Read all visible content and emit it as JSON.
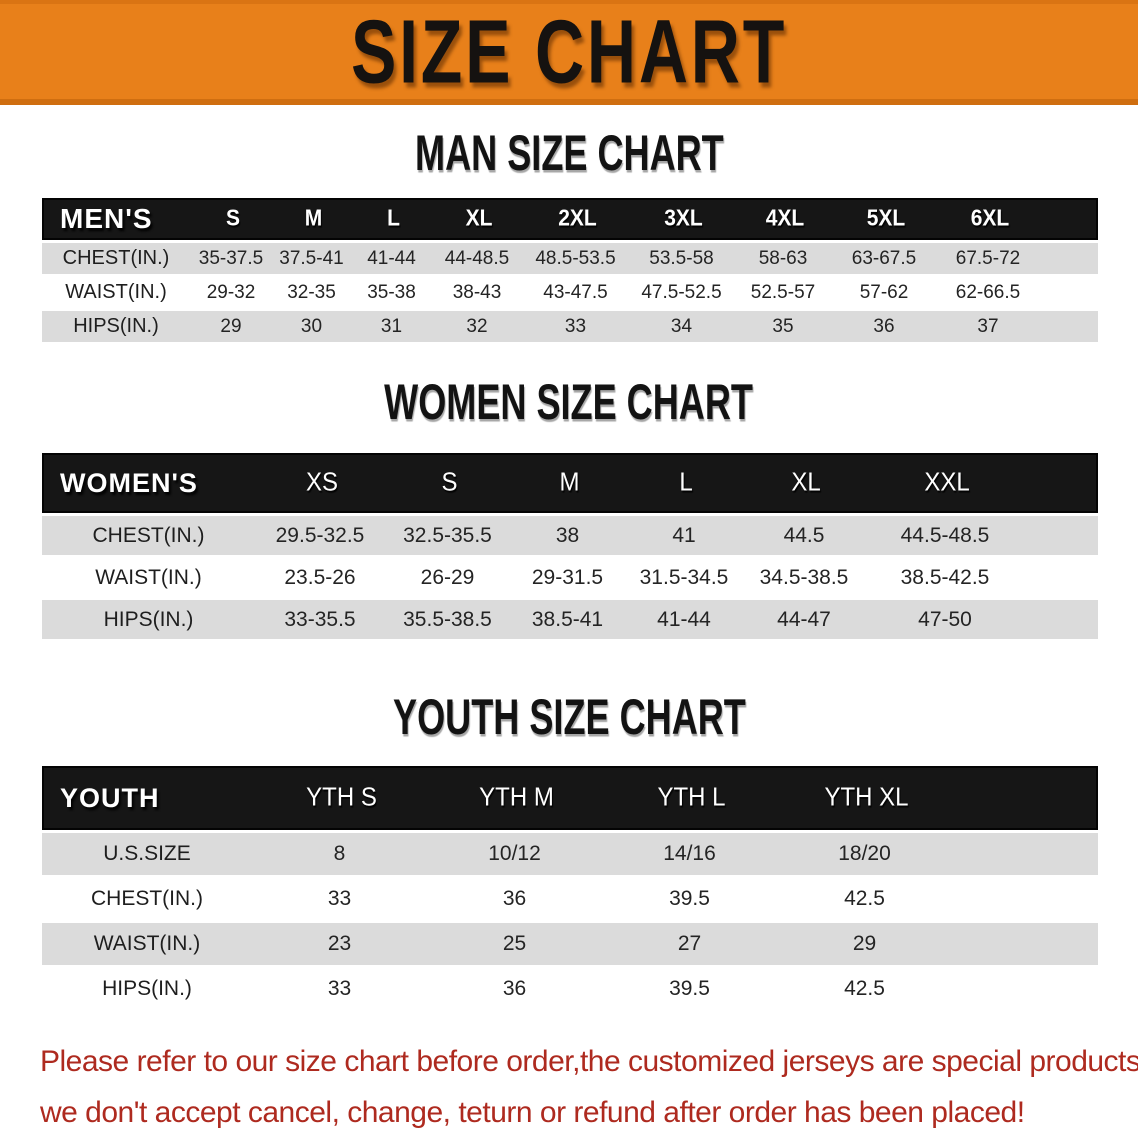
{
  "banner": {
    "title": "SIZE CHART",
    "background": "#E8801A"
  },
  "sections": {
    "man_heading": "MAN SIZE CHART",
    "women_heading": "WOMEN SIZE CHART",
    "youth_heading": "YOUTH SIZE CHART"
  },
  "tables": [
    {
      "id": "men",
      "label": "MEN'S",
      "sizes": [
        "S",
        "M",
        "L",
        "XL",
        "2XL",
        "3XL",
        "4XL",
        "5XL",
        "6XL"
      ],
      "rows": [
        {
          "label": "CHEST(IN.)",
          "values": [
            "35-37.5",
            "37.5-41",
            "41-44",
            "44-48.5",
            "48.5-53.5",
            "53.5-58",
            "58-63",
            "63-67.5",
            "67.5-72"
          ]
        },
        {
          "label": "WAIST(IN.)",
          "values": [
            "29-32",
            "32-35",
            "35-38",
            "38-43",
            "43-47.5",
            "47.5-52.5",
            "52.5-57",
            "57-62",
            "62-66.5"
          ]
        },
        {
          "label": "HIPS(IN.)",
          "values": [
            "29",
            "30",
            "31",
            "32",
            "33",
            "34",
            "35",
            "36",
            "37"
          ]
        }
      ]
    },
    {
      "id": "women",
      "label": "WOMEN'S",
      "sizes": [
        "XS",
        "S",
        "M",
        "L",
        "XL",
        "XXL"
      ],
      "rows": [
        {
          "label": "CHEST(IN.)",
          "values": [
            "29.5-32.5",
            "32.5-35.5",
            "38",
            "41",
            "44.5",
            "44.5-48.5"
          ]
        },
        {
          "label": "WAIST(IN.)",
          "values": [
            "23.5-26",
            "26-29",
            "29-31.5",
            "31.5-34.5",
            "34.5-38.5",
            "38.5-42.5"
          ]
        },
        {
          "label": "HIPS(IN.)",
          "values": [
            "33-35.5",
            "35.5-38.5",
            "38.5-41",
            "41-44",
            "44-47",
            "47-50"
          ]
        }
      ]
    },
    {
      "id": "youth",
      "label": "YOUTH",
      "sizes": [
        "YTH S",
        "YTH M",
        "YTH L",
        "YTH XL"
      ],
      "rows": [
        {
          "label": "U.S.SIZE",
          "values": [
            "8",
            "10/12",
            "14/16",
            "18/20"
          ]
        },
        {
          "label": "CHEST(IN.)",
          "values": [
            "33",
            "36",
            "39.5",
            "42.5"
          ]
        },
        {
          "label": "WAIST(IN.)",
          "values": [
            "23",
            "25",
            "27",
            "29"
          ]
        },
        {
          "label": "HIPS(IN.)",
          "values": [
            "33",
            "36",
            "39.5",
            "42.5"
          ]
        }
      ]
    }
  ],
  "disclaimer": {
    "line1": "Please refer to our size chart before order,the customized jerseys are special products,",
    "line2": "we don't accept cancel, change, teturn or refund after order has been placed!",
    "color": "#AE2A1F"
  },
  "colors": {
    "banner_orange": "#E8801A",
    "header_black": "#161616",
    "row_gray": "#DBDBDB",
    "row_white": "#FFFFFF"
  }
}
